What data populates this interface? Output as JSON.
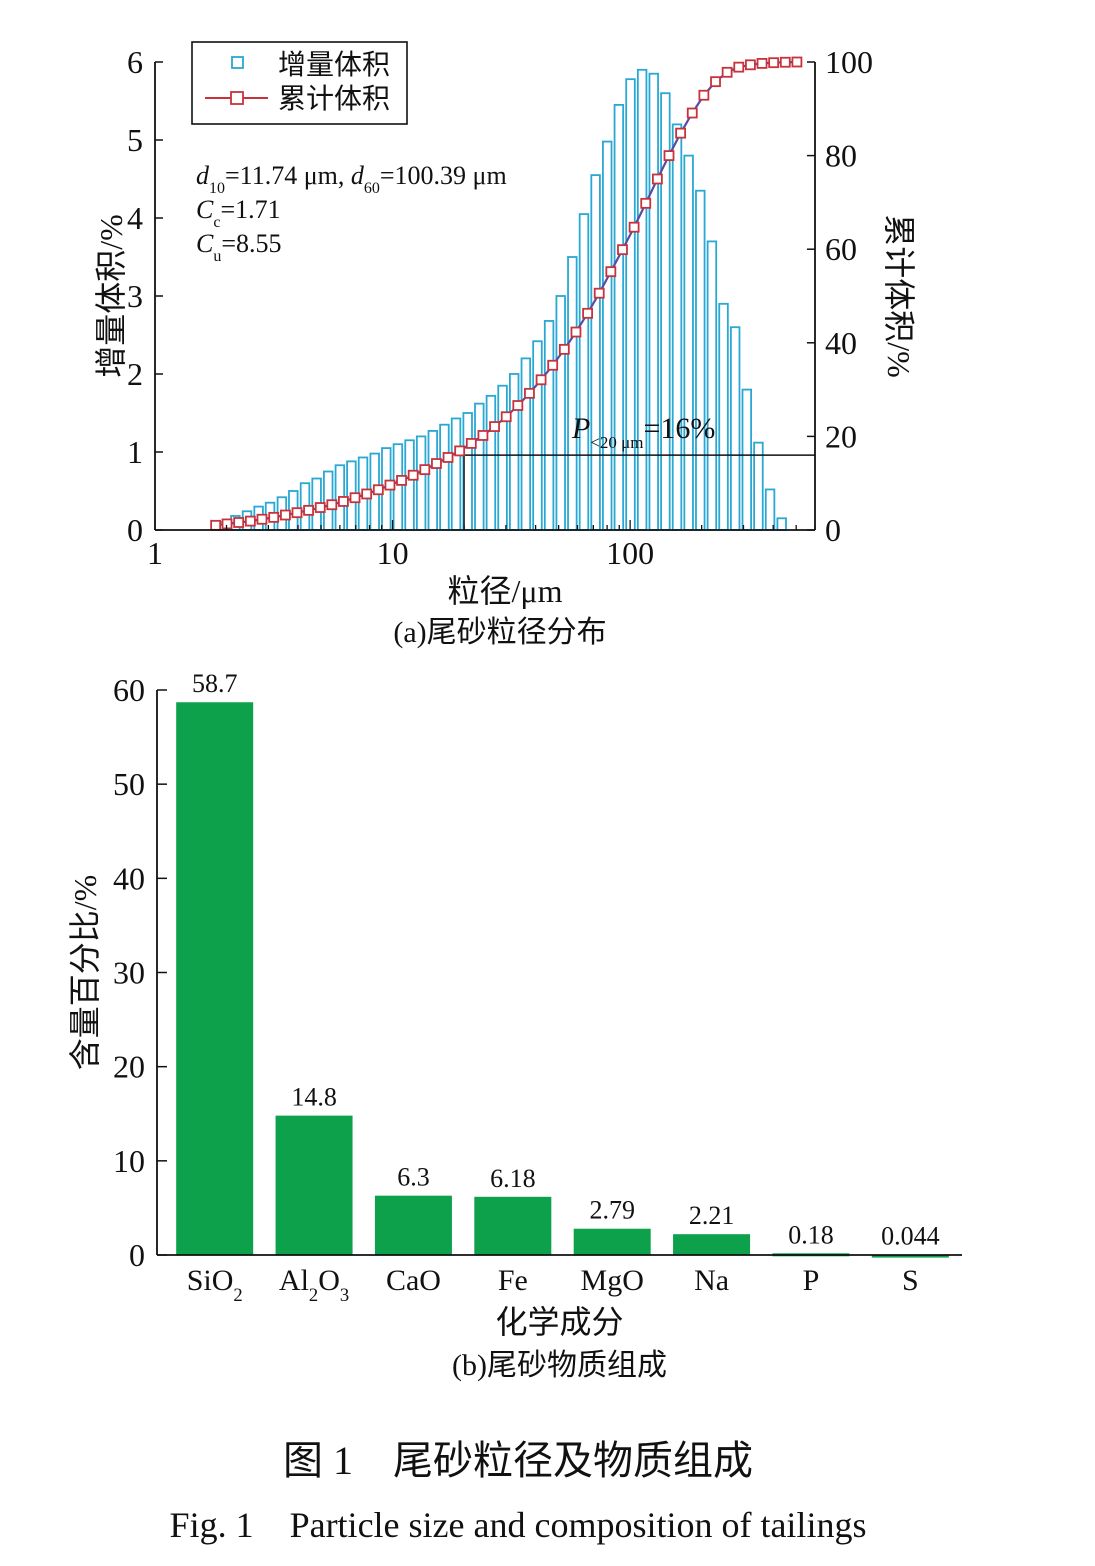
{
  "chart_data": [
    {
      "type": "bar+line",
      "xscale": "log",
      "xlim": [
        1,
        600
      ],
      "xticks": [
        1,
        10,
        100
      ],
      "xlabel": "粒径/μm",
      "ylabel_left": "增量体积/%",
      "ylabel_right": "累计体积/%",
      "ylim_left": [
        0,
        6
      ],
      "ylim_right": [
        0,
        100
      ],
      "yticks_left": [
        0,
        1,
        2,
        3,
        4,
        5,
        6
      ],
      "yticks_right": [
        0,
        20,
        40,
        60,
        80,
        100
      ],
      "legend": {
        "placement": "top-left",
        "entries": [
          "增量体积",
          "累计体积"
        ]
      },
      "annotations": {
        "d_line": "d₁₀=11.74 μm, d₆₀=100.39 μm",
        "cc": "Cc=1.71",
        "cu": "Cu=8.55",
        "p20": "P<20 μm=16%"
      },
      "reference": {
        "x": 20,
        "y_right": 16
      },
      "series": [
        {
          "name": "增量体积",
          "kind": "bar",
          "color": "#29a8d4",
          "x": [
            1.95,
            2.18,
            2.44,
            2.73,
            3.05,
            3.42,
            3.82,
            4.28,
            4.79,
            5.36,
            6.0,
            6.71,
            7.51,
            8.41,
            9.41,
            10.53,
            11.79,
            13.19,
            14.77,
            16.53,
            18.5,
            20.71,
            23.18,
            25.94,
            29.04,
            32.51,
            36.39,
            40.73,
            45.59,
            51.03,
            57.11,
            63.93,
            71.56,
            80.09,
            89.65,
            100.35,
            112.33,
            125.73,
            140.73,
            157.52,
            176.32,
            197.36,
            220.91,
            247.27,
            276.78,
            309.8,
            346.77,
            388.15,
            434.47
          ],
          "values": [
            0.1,
            0.18,
            0.24,
            0.3,
            0.35,
            0.42,
            0.5,
            0.6,
            0.66,
            0.75,
            0.83,
            0.88,
            0.93,
            0.98,
            1.05,
            1.1,
            1.15,
            1.2,
            1.27,
            1.35,
            1.43,
            1.5,
            1.62,
            1.72,
            1.85,
            2.0,
            2.2,
            2.42,
            2.68,
            3.0,
            3.5,
            4.05,
            4.55,
            4.98,
            5.45,
            5.78,
            5.9,
            5.85,
            5.6,
            5.2,
            4.8,
            4.35,
            3.7,
            2.9,
            2.6,
            1.8,
            1.12,
            0.52,
            0.15
          ]
        },
        {
          "name": "累计体积",
          "kind": "line",
          "color": "#c8323a",
          "x": [
            1.8,
            2.01,
            2.25,
            2.52,
            2.82,
            3.16,
            3.54,
            3.96,
            4.43,
            4.96,
            5.55,
            6.21,
            6.95,
            7.78,
            8.71,
            9.75,
            10.91,
            12.21,
            13.67,
            15.3,
            17.12,
            19.16,
            21.45,
            24.01,
            26.87,
            30.08,
            33.67,
            37.68,
            42.18,
            47.21,
            52.84,
            59.15,
            66.21,
            74.11,
            82.95,
            92.85,
            103.93,
            116.33,
            130.21,
            145.74,
            163.13,
            182.59,
            204.38,
            228.76,
            256.05,
            286.6,
            320.8,
            359.07,
            401.91,
            449.87,
            503.55
          ],
          "values": [
            1.0,
            1.3,
            1.6,
            1.9,
            2.3,
            2.7,
            3.2,
            3.7,
            4.2,
            4.8,
            5.4,
            6.1,
            6.9,
            7.7,
            8.6,
            9.6,
            10.6,
            11.7,
            12.9,
            14.2,
            15.5,
            16.9,
            18.5,
            20.2,
            22.1,
            24.2,
            26.6,
            29.2,
            32.1,
            35.2,
            38.6,
            42.3,
            46.3,
            50.6,
            55.2,
            59.9,
            64.7,
            69.8,
            75.0,
            80.0,
            84.8,
            89.1,
            92.9,
            95.8,
            97.8,
            98.9,
            99.4,
            99.7,
            99.85,
            99.95,
            100.0
          ]
        }
      ],
      "caption": "(a)尾砂粒径分布"
    },
    {
      "type": "bar",
      "categories": [
        "SiO₂",
        "Al₂O₃",
        "CaO",
        "Fe",
        "MgO",
        "Na",
        "P",
        "S"
      ],
      "values": [
        58.7,
        14.8,
        6.3,
        6.18,
        2.79,
        2.21,
        0.18,
        0.044
      ],
      "data_labels": [
        "58.7",
        "14.8",
        "6.3",
        "6.18",
        "2.79",
        "2.21",
        "0.18",
        "0.044"
      ],
      "ylim": [
        0,
        60
      ],
      "yticks": [
        0,
        10,
        20,
        30,
        40,
        50,
        60
      ],
      "xlabel": "化学成分",
      "ylabel": "含量百分比/%",
      "color": "#0da14b",
      "caption": "(b)尾砂物质组成"
    }
  ],
  "figure": {
    "title_cn": "图 1　尾砂粒径及物质组成",
    "title_en": "Fig. 1　Particle size and composition of tailings"
  }
}
